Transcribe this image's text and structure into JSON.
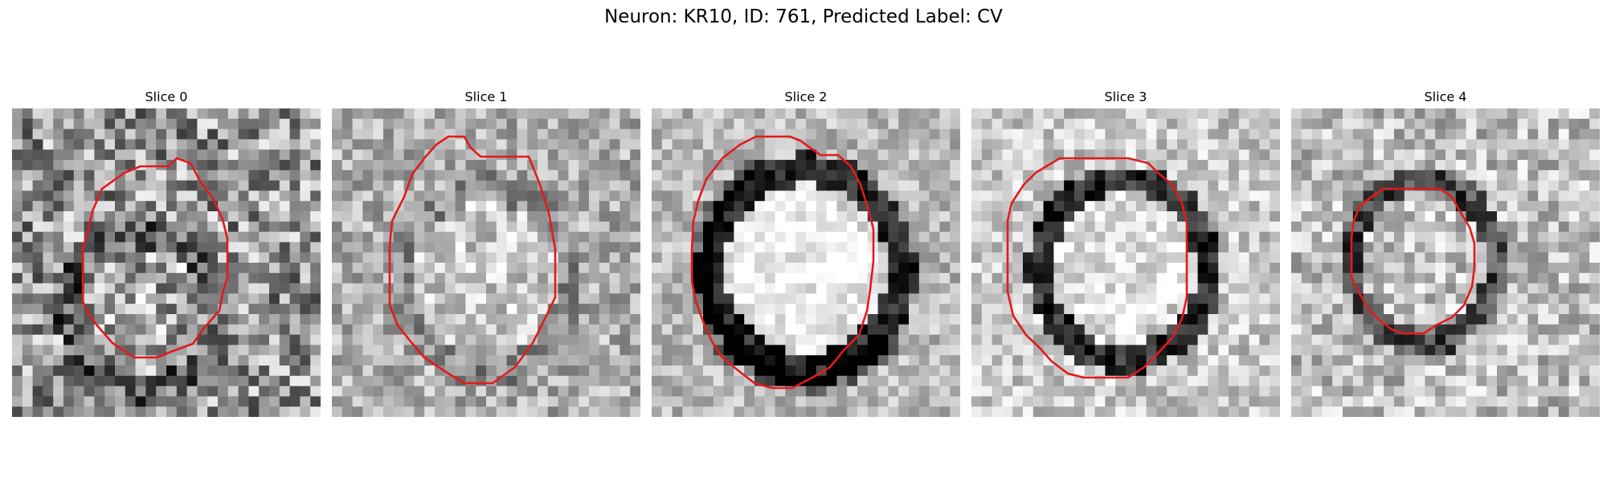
{
  "figure": {
    "title": "Neuron: KR10, ID: 761, Predicted Label: CV"
  },
  "panels": [
    {
      "title": "Slice 0",
      "contour_color": "#e31a1c"
    },
    {
      "title": "Slice 1",
      "contour_color": "#e31a1c"
    },
    {
      "title": "Slice 2",
      "contour_color": "#e31a1c"
    },
    {
      "title": "Slice 3",
      "contour_color": "#e31a1c"
    },
    {
      "title": "Slice 4",
      "contour_color": "#e31a1c"
    }
  ],
  "colors": {
    "colormap": "grayscale",
    "contour": "#e31a1c"
  }
}
